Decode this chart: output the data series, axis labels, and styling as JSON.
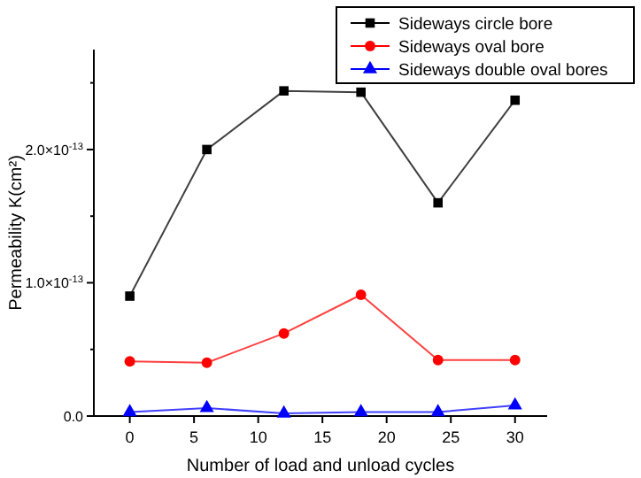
{
  "chart_data": {
    "type": "line",
    "xlabel": "Number of load and unload cycles",
    "ylabel": "Permeability K(cm²)",
    "x": [
      0,
      6,
      12,
      18,
      24,
      30
    ],
    "xlim": [
      -2.8,
      32.5
    ],
    "xticks": [
      0,
      5,
      10,
      15,
      20,
      25,
      30
    ],
    "ylim": [
      0,
      2.75e-13
    ],
    "yticks": [
      {
        "value": 0,
        "label": "0.0"
      },
      {
        "value": 5e-14,
        "label": null
      },
      {
        "value": 1e-13,
        "label": "1.0×10$^{-13}$"
      },
      {
        "value": 1.5e-13,
        "label": null
      },
      {
        "value": 2e-13,
        "label": "2.0×10$^{-13}$"
      },
      {
        "value": 2.5e-13,
        "label": null
      }
    ],
    "grid": false,
    "legend": "top right",
    "line_style": "solid",
    "series": [
      {
        "name": "Sideways circle bore",
        "color": "#000000",
        "marker": "square",
        "values": [
          9e-14,
          2e-13,
          2.44e-13,
          2.43e-13,
          1.6e-13,
          2.37e-13
        ]
      },
      {
        "name": "Sideways oval bore",
        "color": "#ff0000",
        "marker": "circle",
        "values": [
          4.1e-14,
          4e-14,
          6.2e-14,
          9.1e-14,
          4.2e-14,
          4.2e-14
        ]
      },
      {
        "name": "Sideways double oval bores",
        "color": "#0000ff",
        "marker": "triangle",
        "values": [
          3e-15,
          6e-15,
          2e-15,
          3e-15,
          3e-15,
          8e-15
        ]
      }
    ]
  }
}
